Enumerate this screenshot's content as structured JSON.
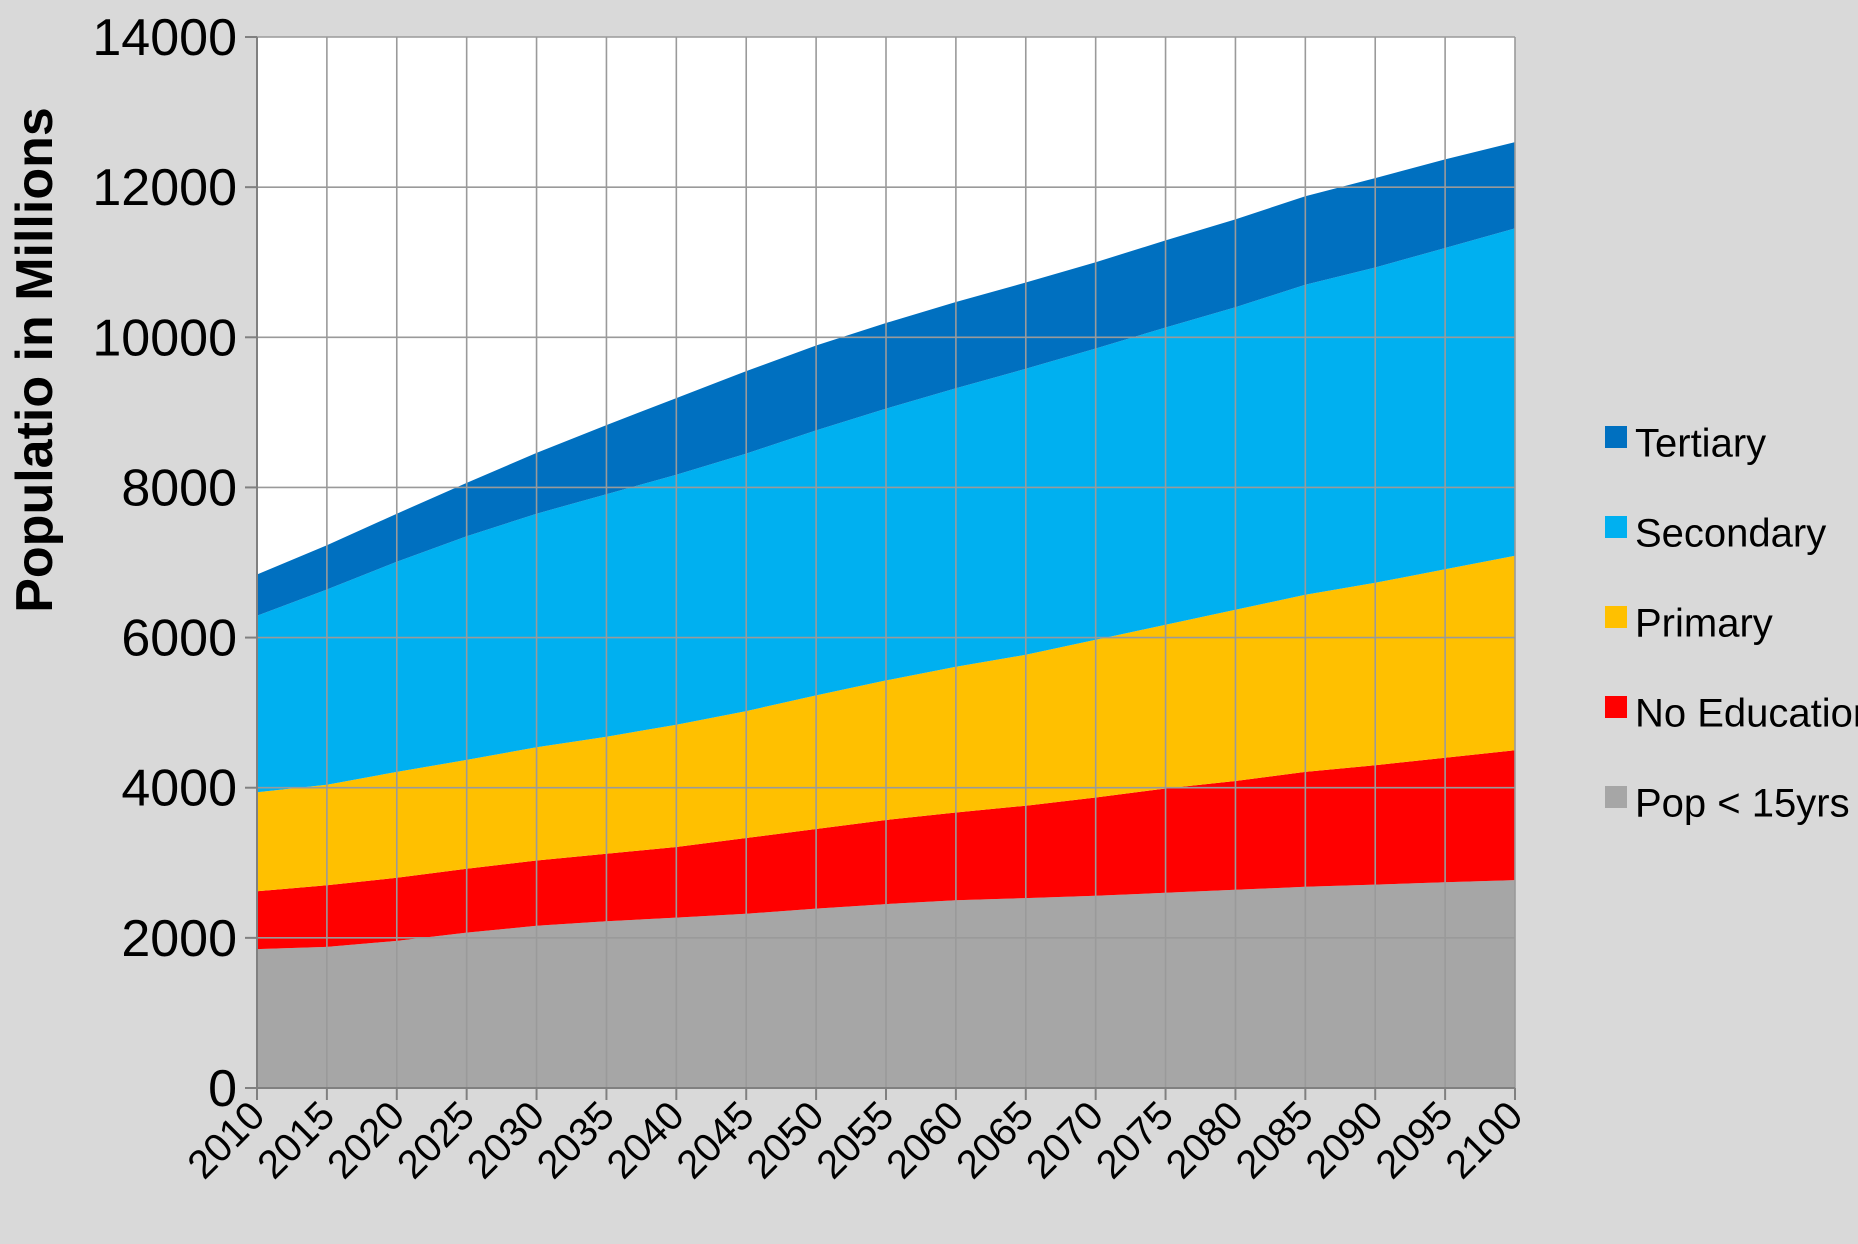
{
  "chart_data": {
    "type": "area",
    "stacked": true,
    "title": "",
    "xlabel": "",
    "ylabel": "Populatio in Millions",
    "x": [
      2010,
      2015,
      2020,
      2025,
      2030,
      2035,
      2040,
      2045,
      2050,
      2055,
      2060,
      2065,
      2070,
      2075,
      2080,
      2085,
      2090,
      2095,
      2100
    ],
    "ylim": [
      0,
      14000
    ],
    "y_ticks": [
      0,
      2000,
      4000,
      6000,
      8000,
      10000,
      12000,
      14000
    ],
    "grid": true,
    "legend_position": "right",
    "series": [
      {
        "name": "Pop < 15yrs",
        "color": "#a6a6a6",
        "values": [
          1850,
          1880,
          1960,
          2070,
          2160,
          2220,
          2270,
          2320,
          2390,
          2450,
          2500,
          2530,
          2560,
          2600,
          2640,
          2680,
          2710,
          2740,
          2770
        ]
      },
      {
        "name": "No Education",
        "color": "#ff0000",
        "values": [
          770,
          820,
          840,
          850,
          870,
          900,
          940,
          1010,
          1060,
          1120,
          1170,
          1230,
          1310,
          1390,
          1450,
          1530,
          1590,
          1660,
          1730
        ]
      },
      {
        "name": "Primary",
        "color": "#ffc000",
        "values": [
          1320,
          1340,
          1410,
          1450,
          1510,
          1560,
          1630,
          1690,
          1780,
          1860,
          1940,
          2010,
          2100,
          2180,
          2280,
          2360,
          2430,
          2510,
          2590
        ]
      },
      {
        "name": "Secondary",
        "color": "#00b0f0",
        "values": [
          2350,
          2600,
          2800,
          2980,
          3110,
          3230,
          3330,
          3430,
          3530,
          3620,
          3710,
          3810,
          3880,
          3960,
          4030,
          4130,
          4200,
          4280,
          4360
        ]
      },
      {
        "name": "Tertiary",
        "color": "#0070c0",
        "values": [
          550,
          590,
          640,
          710,
          810,
          920,
          1020,
          1100,
          1130,
          1140,
          1150,
          1150,
          1150,
          1160,
          1170,
          1180,
          1190,
          1180,
          1150
        ]
      }
    ]
  }
}
